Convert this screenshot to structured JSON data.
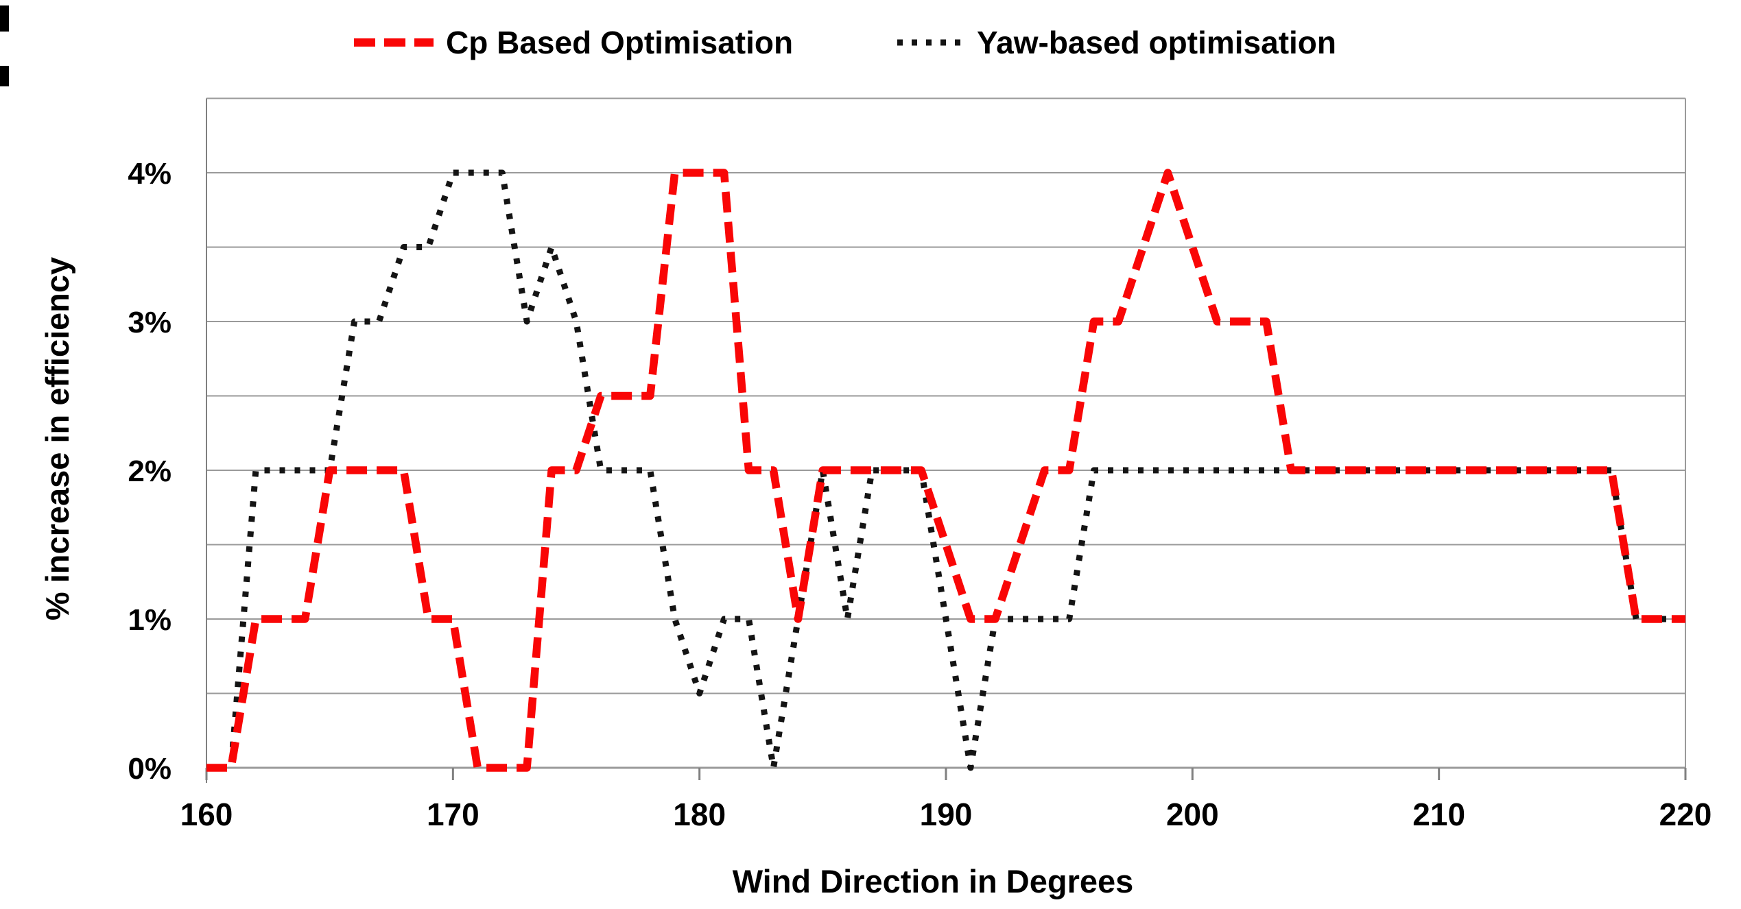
{
  "chart_data": {
    "type": "line",
    "title": "",
    "xlabel": "Wind Direction in Degrees",
    "ylabel": "% increase in efficiency",
    "xlim": [
      160,
      220
    ],
    "ylim": [
      0,
      4.5
    ],
    "grid": "horizontal gridlines every 0.5%, plot border left/right/top",
    "legend_position": "top",
    "x_ticks": [
      160,
      170,
      180,
      190,
      200,
      210,
      220
    ],
    "y_ticks": [
      "0%",
      "1%",
      "2%",
      "3%",
      "4%"
    ],
    "y_tick_values": [
      0,
      1,
      2,
      3,
      4
    ],
    "x": [
      160,
      161,
      162,
      163,
      164,
      165,
      166,
      167,
      168,
      169,
      170,
      171,
      172,
      173,
      174,
      175,
      176,
      177,
      178,
      179,
      180,
      181,
      182,
      183,
      184,
      185,
      186,
      187,
      188,
      189,
      190,
      191,
      192,
      193,
      194,
      195,
      196,
      197,
      198,
      199,
      200,
      201,
      202,
      203,
      204,
      205,
      206,
      207,
      208,
      209,
      210,
      211,
      212,
      213,
      214,
      215,
      216,
      217,
      218,
      219,
      220
    ],
    "series": [
      {
        "name": "Cp Based Optimisation",
        "color": "#f90606",
        "style": "dashed",
        "values": [
          0,
          0,
          1,
          1,
          1,
          2,
          2,
          2,
          2,
          1,
          1,
          0,
          0,
          0,
          2,
          2,
          2.5,
          2.5,
          2.5,
          4,
          4,
          4,
          2,
          2,
          1,
          2,
          2,
          2,
          2,
          2,
          1.5,
          1,
          1,
          1.5,
          2,
          2,
          3,
          3,
          3.5,
          4,
          3.5,
          3,
          3,
          3,
          2,
          2,
          2,
          2,
          2,
          2,
          2,
          2,
          2,
          2,
          2,
          2,
          2,
          2,
          1,
          1,
          1
        ]
      },
      {
        "name": "Yaw-based optimisation",
        "color": "#141414",
        "style": "dotted",
        "values": [
          0,
          0,
          2,
          2,
          2,
          2,
          3,
          3,
          3.5,
          3.5,
          4,
          4,
          4,
          3,
          3.5,
          3,
          2,
          2,
          2,
          1,
          0.5,
          1,
          1,
          0,
          1,
          2,
          1,
          2,
          2,
          2,
          1,
          0,
          1,
          1,
          1,
          1,
          2,
          2,
          2,
          2,
          2,
          2,
          2,
          2,
          2,
          2,
          2,
          2,
          2,
          2,
          2,
          2,
          2,
          2,
          2,
          2,
          2,
          2,
          1,
          1,
          1
        ]
      }
    ]
  },
  "colors": {
    "background": "#ffffff",
    "grid": "#9a9a9a",
    "axis": "#808080",
    "text": "#000000",
    "cp_red": "#f90606",
    "yaw_black": "#141414"
  }
}
